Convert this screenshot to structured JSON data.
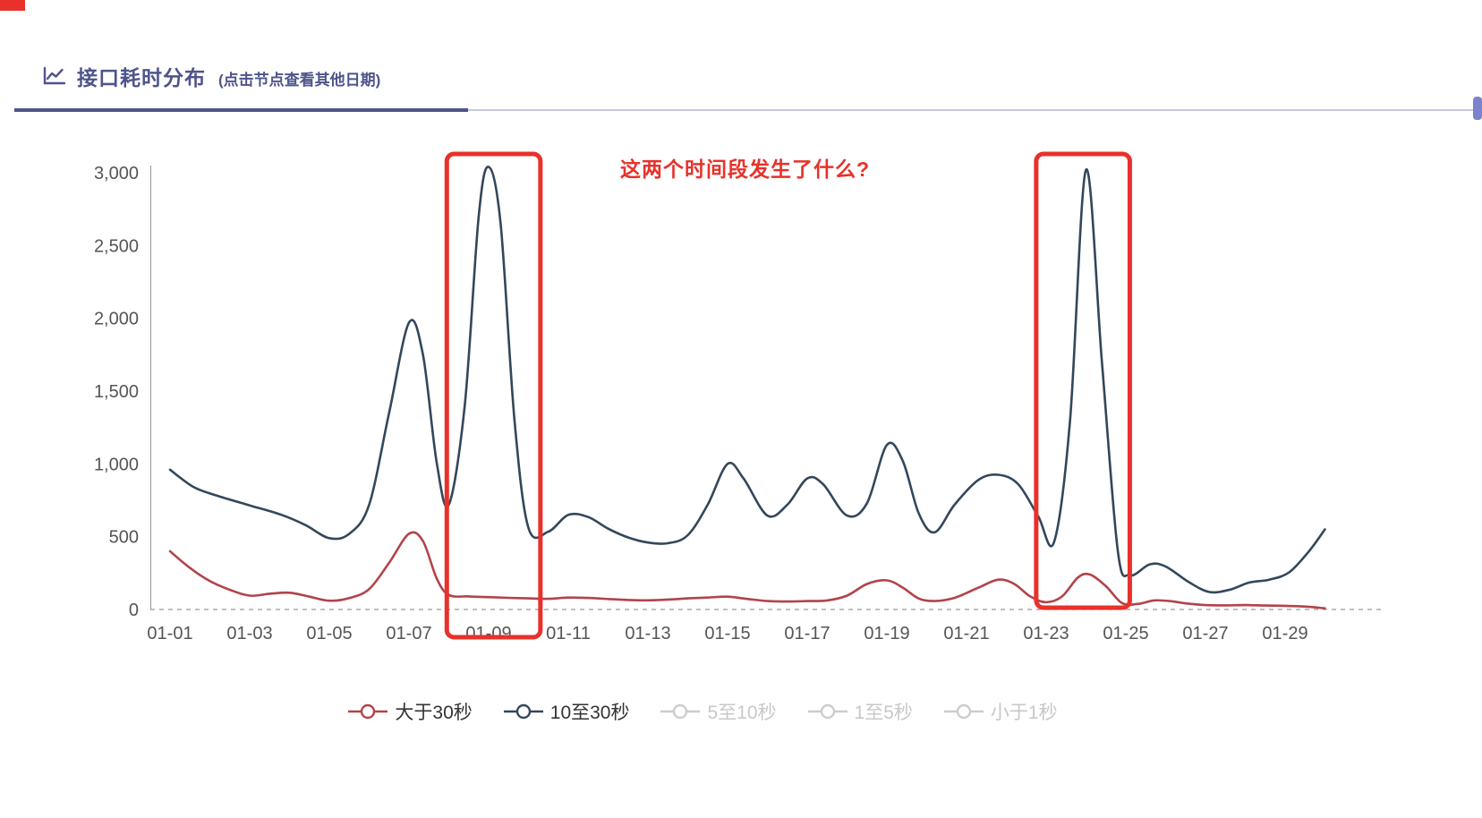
{
  "header": {
    "title": "接口耗时分布",
    "subtitle": "(点击节点查看其他日期)"
  },
  "annotation": {
    "question": "这两个时间段发生了什么?"
  },
  "colors": {
    "accent": "#4e548c",
    "annotation_red": "#e8312a",
    "axis_text": "#555555"
  },
  "chart_data": {
    "type": "line",
    "title": "接口耗时分布",
    "xlabel": "",
    "ylabel": "",
    "ylim": [
      0,
      3000
    ],
    "grid": false,
    "legend_position": "bottom",
    "x_unit": "day of month, 1 = 01-01",
    "x_tick_labels": [
      "01-01",
      "01-03",
      "01-05",
      "01-07",
      "01-09",
      "01-11",
      "01-13",
      "01-15",
      "01-17",
      "01-19",
      "01-21",
      "01-23",
      "01-25",
      "01-27",
      "01-29"
    ],
    "y_ticks": [
      0,
      500,
      1000,
      1500,
      2000,
      2500,
      3000
    ],
    "y_tick_labels": [
      "0",
      "500",
      "1,000",
      "1,500",
      "2,000",
      "2,500",
      "3,000"
    ],
    "series": [
      {
        "name": "大于30秒",
        "key": "gt-30s",
        "color": "#b2434a",
        "enabled": true,
        "points": [
          [
            1,
            400
          ],
          [
            1.5,
            285
          ],
          [
            2,
            195
          ],
          [
            2.5,
            135
          ],
          [
            3,
            95
          ],
          [
            3.5,
            108
          ],
          [
            4,
            115
          ],
          [
            4.5,
            88
          ],
          [
            5,
            60
          ],
          [
            5.5,
            78
          ],
          [
            6,
            140
          ],
          [
            6.5,
            320
          ],
          [
            7,
            520
          ],
          [
            7.35,
            470
          ],
          [
            7.7,
            210
          ],
          [
            8,
            100
          ],
          [
            8.5,
            90
          ],
          [
            9,
            85
          ],
          [
            9.5,
            80
          ],
          [
            10,
            76
          ],
          [
            10.5,
            73
          ],
          [
            11,
            82
          ],
          [
            11.5,
            79
          ],
          [
            12,
            72
          ],
          [
            12.5,
            65
          ],
          [
            13,
            63
          ],
          [
            13.5,
            68
          ],
          [
            14,
            76
          ],
          [
            14.5,
            82
          ],
          [
            15,
            88
          ],
          [
            15.5,
            72
          ],
          [
            16,
            58
          ],
          [
            16.5,
            55
          ],
          [
            17,
            58
          ],
          [
            17.5,
            62
          ],
          [
            18,
            95
          ],
          [
            18.5,
            175
          ],
          [
            19,
            200
          ],
          [
            19.4,
            150
          ],
          [
            19.8,
            75
          ],
          [
            20.2,
            58
          ],
          [
            20.7,
            80
          ],
          [
            21.3,
            150
          ],
          [
            21.8,
            205
          ],
          [
            22.2,
            175
          ],
          [
            22.6,
            90
          ],
          [
            23,
            50
          ],
          [
            23.4,
            90
          ],
          [
            23.8,
            220
          ],
          [
            24.1,
            240
          ],
          [
            24.5,
            160
          ],
          [
            24.9,
            45
          ],
          [
            25.3,
            38
          ],
          [
            25.7,
            62
          ],
          [
            26.1,
            58
          ],
          [
            26.5,
            42
          ],
          [
            27,
            30
          ],
          [
            27.5,
            28
          ],
          [
            28,
            30
          ],
          [
            28.5,
            27
          ],
          [
            29,
            25
          ],
          [
            29.5,
            20
          ],
          [
            30,
            8
          ]
        ]
      },
      {
        "name": "10至30秒",
        "key": "10-30s",
        "color": "#33475b",
        "enabled": true,
        "points": [
          [
            1,
            960
          ],
          [
            1.6,
            840
          ],
          [
            2.2,
            780
          ],
          [
            3,
            715
          ],
          [
            3.8,
            650
          ],
          [
            4.4,
            580
          ],
          [
            5,
            490
          ],
          [
            5.5,
            520
          ],
          [
            6,
            720
          ],
          [
            6.5,
            1350
          ],
          [
            7,
            1970
          ],
          [
            7.35,
            1750
          ],
          [
            7.7,
            1000
          ],
          [
            8,
            720
          ],
          [
            8.4,
            1400
          ],
          [
            8.75,
            2700
          ],
          [
            9,
            3040
          ],
          [
            9.3,
            2650
          ],
          [
            9.65,
            1300
          ],
          [
            10,
            560
          ],
          [
            10.5,
            535
          ],
          [
            11,
            650
          ],
          [
            11.5,
            635
          ],
          [
            12,
            555
          ],
          [
            12.5,
            495
          ],
          [
            13,
            460
          ],
          [
            13.5,
            455
          ],
          [
            14,
            510
          ],
          [
            14.5,
            720
          ],
          [
            15,
            1000
          ],
          [
            15.4,
            900
          ],
          [
            16,
            645
          ],
          [
            16.5,
            720
          ],
          [
            17,
            900
          ],
          [
            17.4,
            860
          ],
          [
            18,
            645
          ],
          [
            18.5,
            730
          ],
          [
            19,
            1130
          ],
          [
            19.4,
            1020
          ],
          [
            19.8,
            660
          ],
          [
            20.2,
            530
          ],
          [
            20.7,
            720
          ],
          [
            21.3,
            890
          ],
          [
            21.8,
            925
          ],
          [
            22.3,
            860
          ],
          [
            22.8,
            640
          ],
          [
            23.2,
            465
          ],
          [
            23.6,
            1300
          ],
          [
            24,
            3020
          ],
          [
            24.4,
            1700
          ],
          [
            24.8,
            400
          ],
          [
            25.1,
            235
          ],
          [
            25.6,
            310
          ],
          [
            26,
            295
          ],
          [
            26.6,
            185
          ],
          [
            27.1,
            120
          ],
          [
            27.6,
            135
          ],
          [
            28.1,
            185
          ],
          [
            28.6,
            205
          ],
          [
            29.1,
            255
          ],
          [
            29.6,
            400
          ],
          [
            30,
            550
          ]
        ]
      },
      {
        "name": "5至10秒",
        "key": "5-10s",
        "color": "#cccccc",
        "enabled": false,
        "points": []
      },
      {
        "name": "1至5秒",
        "key": "1-5s",
        "color": "#cccccc",
        "enabled": false,
        "points": []
      },
      {
        "name": "小于1秒",
        "key": "lt-1s",
        "color": "#cccccc",
        "enabled": false,
        "points": []
      }
    ],
    "highlight_boxes": [
      {
        "from_day": 7.95,
        "to_day": 10.3,
        "color": "#e8312a",
        "below_axis": true
      },
      {
        "from_day": 22.75,
        "to_day": 25.1,
        "color": "#e8312a",
        "below_axis": false
      }
    ]
  }
}
